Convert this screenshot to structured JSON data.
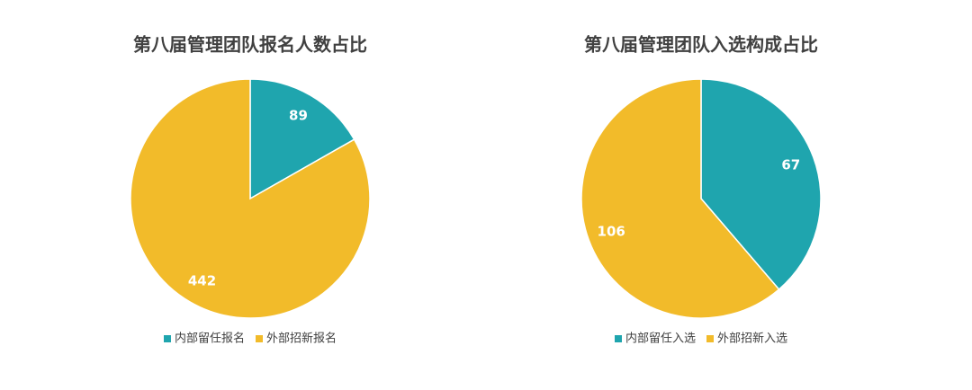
{
  "chart_data": [
    {
      "type": "pie",
      "title": "第八届管理团队报名人数占比",
      "categories": [
        "内部留任报名",
        "外部招新报名"
      ],
      "values": [
        89,
        442
      ],
      "colors": [
        "#1fa5ae",
        "#f2bb2a"
      ],
      "legend": "bottom"
    },
    {
      "type": "pie",
      "title": "第八届管理团队入选构成占比",
      "categories": [
        "内部留任入选",
        "外部招新入选"
      ],
      "values": [
        67,
        106
      ],
      "colors": [
        "#1fa5ae",
        "#f2bb2a"
      ],
      "legend": "bottom"
    }
  ]
}
